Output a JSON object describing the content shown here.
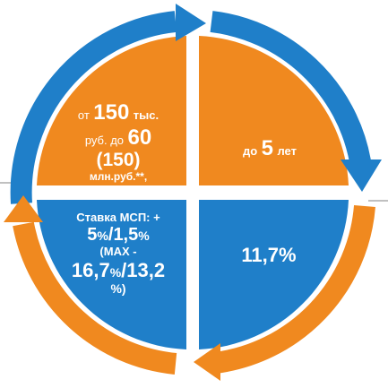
{
  "colors": {
    "orange": "#f0891f",
    "blue": "#1f7fc9",
    "white": "#ffffff",
    "gray_line": "#9a9a9a"
  },
  "quadrants": {
    "top_left": {
      "line1_prefix": "от",
      "line1_number": "150",
      "line1_suffix": "тыс.",
      "line2_prefix": "руб. до",
      "line2_number": "60",
      "line3": "(150)",
      "line4": "млн.руб.**,"
    },
    "top_right": {
      "prefix": "до",
      "number": "5",
      "suffix": "лет"
    },
    "bottom_left": {
      "line1": "Ставка МСП: +",
      "rate_a": "5",
      "pct_a": "%",
      "sep": "/",
      "rate_b": "1,5",
      "pct_b": "%",
      "line3": "(МАХ -",
      "max_a": "16,7",
      "max_pct_a": "%",
      "max_sep": "/",
      "max_b": "13,2",
      "line5": "%)"
    },
    "bottom_right": {
      "value": "11,7%"
    }
  },
  "icons": {
    "arrow_top": "arrow-right-icon",
    "arrow_right": "arrow-down-icon",
    "arrow_bottom": "arrow-left-icon",
    "arrow_left": "arrow-up-icon"
  }
}
